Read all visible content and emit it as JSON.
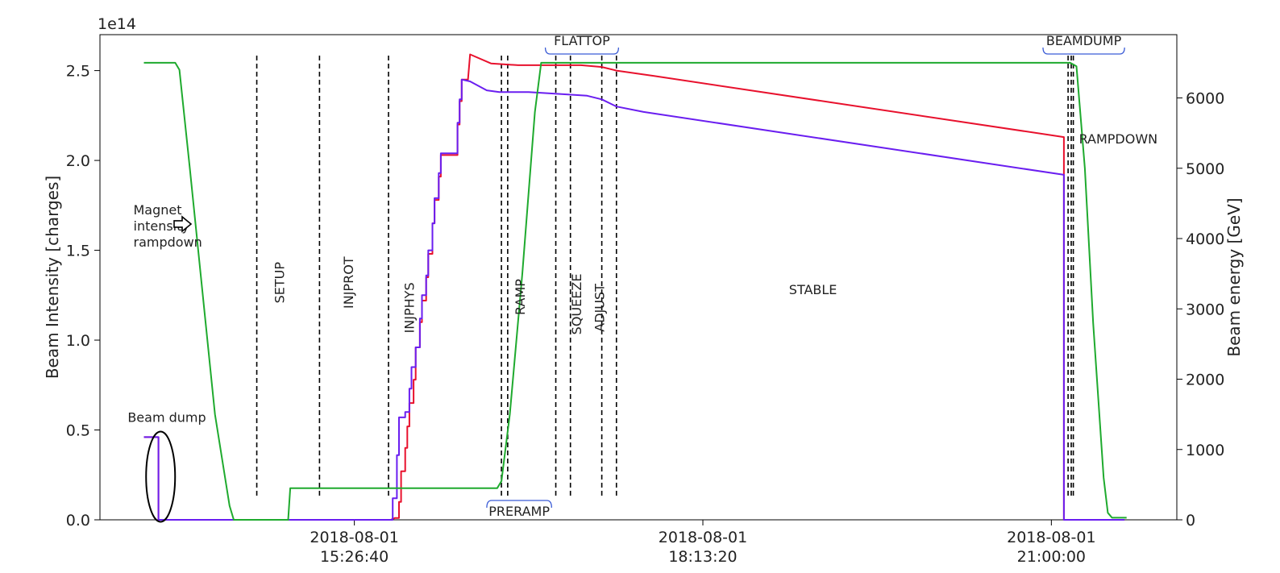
{
  "chart_data": {
    "type": "line",
    "axis_offset_label": "1e14",
    "ylabel_left": "Beam Intensity [charges]",
    "ylabel_right": "Beam energy [GeV]",
    "y_left_ticks": [
      "0.0",
      "0.5",
      "1.0",
      "1.5",
      "2.0",
      "2.5"
    ],
    "y_left_tick_values": [
      0.0,
      0.5,
      1.0,
      1.5,
      2.0,
      2.5
    ],
    "y_left_range": [
      -0.0,
      2.7
    ],
    "y_right_ticks": [
      "0",
      "1000",
      "2000",
      "3000",
      "4000",
      "5000",
      "6000"
    ],
    "y_right_tick_values": [
      0,
      1000,
      2000,
      3000,
      4000,
      5000,
      6000
    ],
    "y_right_range": [
      0,
      6900
    ],
    "x_range": [
      "2018-08-01 13:25:00",
      "2018-08-01 22:00:00"
    ],
    "x_ticks": [
      {
        "line1": "2018-08-01",
        "line2": "15:26:40",
        "time": "15:26:40"
      },
      {
        "line1": "2018-08-01",
        "line2": "18:13:20",
        "time": "18:13:20"
      },
      {
        "line1": "2018-08-01",
        "line2": "21:00:00",
        "time": "21:00:00"
      }
    ],
    "series": [
      {
        "color": "#e8112d",
        "axis": "left",
        "points": [
          [
            "13:46:00",
            0.46
          ],
          [
            "13:53:00",
            0.46
          ],
          [
            "13:53:00",
            0.0
          ],
          [
            "15:44:00",
            0.0
          ],
          [
            "15:46:00",
            0.01
          ],
          [
            "15:48:00",
            0.01
          ],
          [
            "15:48:00",
            0.1
          ],
          [
            "15:49:00",
            0.1
          ],
          [
            "15:49:00",
            0.27
          ],
          [
            "15:51:00",
            0.27
          ],
          [
            "15:51:00",
            0.4
          ],
          [
            "15:52:00",
            0.4
          ],
          [
            "15:52:00",
            0.52
          ],
          [
            "15:53:00",
            0.52
          ],
          [
            "15:53:00",
            0.65
          ],
          [
            "15:55:00",
            0.65
          ],
          [
            "15:55:00",
            0.78
          ],
          [
            "15:56:00",
            0.78
          ],
          [
            "15:56:00",
            0.96
          ],
          [
            "15:58:00",
            0.96
          ],
          [
            "15:58:00",
            1.1
          ],
          [
            "15:59:00",
            1.1
          ],
          [
            "15:59:00",
            1.22
          ],
          [
            "16:01:00",
            1.22
          ],
          [
            "16:01:00",
            1.35
          ],
          [
            "16:02:00",
            1.35
          ],
          [
            "16:02:00",
            1.48
          ],
          [
            "16:04:00",
            1.48
          ],
          [
            "16:04:00",
            1.65
          ],
          [
            "16:05:00",
            1.65
          ],
          [
            "16:05:00",
            1.78
          ],
          [
            "16:07:00",
            1.78
          ],
          [
            "16:07:00",
            1.91
          ],
          [
            "16:08:00",
            1.91
          ],
          [
            "16:08:00",
            2.03
          ],
          [
            "16:16:00",
            2.03
          ],
          [
            "16:16:00",
            2.2
          ],
          [
            "16:17:00",
            2.2
          ],
          [
            "16:17:00",
            2.33
          ],
          [
            "16:18:00",
            2.33
          ],
          [
            "16:18:00",
            2.45
          ],
          [
            "16:21:00",
            2.45
          ],
          [
            "16:22:00",
            2.59
          ],
          [
            "16:32:00",
            2.54
          ],
          [
            "16:45:00",
            2.53
          ],
          [
            "17:15:00",
            2.53
          ],
          [
            "17:25:00",
            2.52
          ],
          [
            "17:32:00",
            2.5
          ],
          [
            "17:50:00",
            2.47
          ],
          [
            "21:06:00",
            2.13
          ],
          [
            "21:06:00",
            0.0
          ],
          [
            "21:35:00",
            0.0
          ]
        ]
      },
      {
        "color": "#6a1ef0",
        "axis": "left",
        "points": [
          [
            "13:46:00",
            0.46
          ],
          [
            "13:53:00",
            0.46
          ],
          [
            "13:53:00",
            0.0
          ],
          [
            "15:45:00",
            0.0
          ],
          [
            "15:45:00",
            0.12
          ],
          [
            "15:47:00",
            0.12
          ],
          [
            "15:47:00",
            0.36
          ],
          [
            "15:48:00",
            0.36
          ],
          [
            "15:48:00",
            0.57
          ],
          [
            "15:51:00",
            0.57
          ],
          [
            "15:51:00",
            0.6
          ],
          [
            "15:53:00",
            0.6
          ],
          [
            "15:53:00",
            0.73
          ],
          [
            "15:54:00",
            0.73
          ],
          [
            "15:54:00",
            0.85
          ],
          [
            "15:56:00",
            0.85
          ],
          [
            "15:56:00",
            0.96
          ],
          [
            "15:58:00",
            0.96
          ],
          [
            "15:58:00",
            1.12
          ],
          [
            "15:59:00",
            1.12
          ],
          [
            "15:59:00",
            1.25
          ],
          [
            "16:01:00",
            1.25
          ],
          [
            "16:01:00",
            1.36
          ],
          [
            "16:02:00",
            1.36
          ],
          [
            "16:02:00",
            1.5
          ],
          [
            "16:04:00",
            1.5
          ],
          [
            "16:04:00",
            1.65
          ],
          [
            "16:05:00",
            1.65
          ],
          [
            "16:05:00",
            1.79
          ],
          [
            "16:07:00",
            1.79
          ],
          [
            "16:07:00",
            1.93
          ],
          [
            "16:08:00",
            1.93
          ],
          [
            "16:08:00",
            2.04
          ],
          [
            "16:16:00",
            2.04
          ],
          [
            "16:16:00",
            2.21
          ],
          [
            "16:17:00",
            2.21
          ],
          [
            "16:17:00",
            2.34
          ],
          [
            "16:18:00",
            2.34
          ],
          [
            "16:18:00",
            2.45
          ],
          [
            "16:22:00",
            2.44
          ],
          [
            "16:30:00",
            2.39
          ],
          [
            "16:36:00",
            2.38
          ],
          [
            "16:50:00",
            2.38
          ],
          [
            "17:05:00",
            2.37
          ],
          [
            "17:18:00",
            2.36
          ],
          [
            "17:25:00",
            2.34
          ],
          [
            "17:32:00",
            2.3
          ],
          [
            "17:45:00",
            2.27
          ],
          [
            "21:06:00",
            1.92
          ],
          [
            "21:06:00",
            0.0
          ],
          [
            "21:35:00",
            0.0
          ]
        ]
      },
      {
        "color": "#1faa2e",
        "axis": "right",
        "points": [
          [
            "13:46:00",
            6500
          ],
          [
            "14:01:00",
            6500
          ],
          [
            "14:03:00",
            6400
          ],
          [
            "14:08:00",
            5000
          ],
          [
            "14:20:00",
            1500
          ],
          [
            "14:27:00",
            200
          ],
          [
            "14:29:00",
            0
          ],
          [
            "14:55:00",
            0
          ],
          [
            "14:56:00",
            450
          ],
          [
            "16:35:00",
            450
          ],
          [
            "16:37:00",
            550
          ],
          [
            "16:41:00",
            1500
          ],
          [
            "16:47:00",
            3500
          ],
          [
            "16:53:00",
            5800
          ],
          [
            "16:56:00",
            6500
          ],
          [
            "21:09:00",
            6500
          ],
          [
            "21:12:00",
            6450
          ],
          [
            "21:16:00",
            5000
          ],
          [
            "21:20:00",
            2800
          ],
          [
            "21:25:00",
            600
          ],
          [
            "21:27:00",
            100
          ],
          [
            "21:29:00",
            30
          ],
          [
            "21:36:00",
            30
          ]
        ]
      }
    ],
    "phase_markers": [
      "14:40:00",
      "15:10:00",
      "15:43:00",
      "16:37:00",
      "16:40:00",
      "17:03:00",
      "17:10:00",
      "17:25:00",
      "17:32:00",
      "21:08:00",
      "21:09:30",
      "21:10:30"
    ],
    "vertical_labels": [
      {
        "text": "SETUP",
        "time": "14:51:00",
        "value": 1.32
      },
      {
        "text": "INJPROT",
        "time": "15:24:00",
        "value": 1.32
      },
      {
        "text": "INJPHYS",
        "time": "15:53:00",
        "value": 1.18
      },
      {
        "text": "RAMP",
        "time": "16:46:00",
        "value": 1.24
      },
      {
        "text": "SQUEEZE",
        "time": "17:13:00",
        "value": 1.2
      },
      {
        "text": "ADJUST",
        "time": "17:24:00",
        "value": 1.18
      }
    ],
    "horizontal_labels": [
      {
        "text": "STABLE",
        "time": "19:06:00",
        "value": 1.28
      },
      {
        "text": "RAMPDOWN",
        "time": "21:32:00",
        "value": 2.12
      },
      {
        "text": "Beam dump",
        "time": "13:57:00",
        "value": 0.57
      }
    ],
    "bracket_labels": [
      {
        "text": "FLATTOP",
        "start": "16:58:00",
        "end": "17:33:00",
        "position": "top"
      },
      {
        "text": "BEAMDUMP",
        "start": "20:56:00",
        "end": "21:35:00",
        "position": "top"
      },
      {
        "text": "PRERAMP",
        "start": "16:30:00",
        "end": "17:01:00",
        "position": "bottom"
      }
    ],
    "annotation": {
      "lines": [
        "Magnet",
        "intensity",
        "rampdown"
      ],
      "time": "13:41:00",
      "value": 1.7
    },
    "beam_dump_ellipse": {
      "time": "13:54:00",
      "value": 0.24
    },
    "grid": false,
    "legend": "none"
  }
}
